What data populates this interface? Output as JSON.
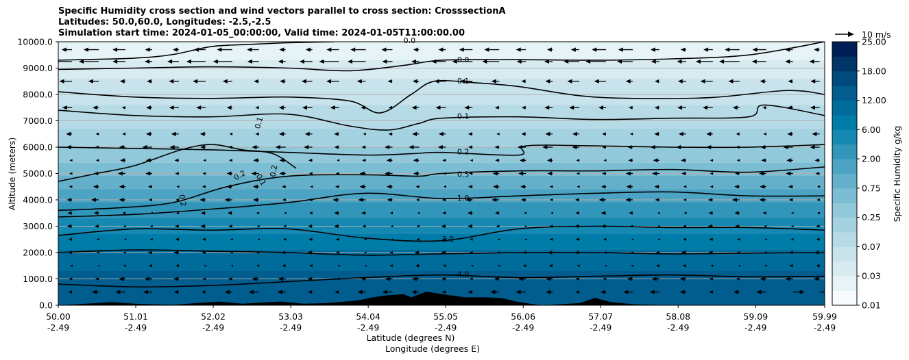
{
  "chart_data": {
    "type": "contour",
    "title_lines": [
      "Specific Humidity cross section and wind vectors parallel to cross section: CrosssectionA",
      "Latitudes: 50.0,60.0, Longitudes: -2.5,-2.5",
      "Simulation start time: 2024-01-05_00:00:00, Valid time: 2024-01-05T11:00:00.00"
    ],
    "xlabel_lines": [
      "Latitude (degrees N)",
      "Longitude (degrees E)"
    ],
    "ylabel": "Altitude (meters)",
    "xlim": [
      50.0,
      59.99
    ],
    "ylim": [
      0,
      10000
    ],
    "x_ticks": [
      {
        "lat": "50.00",
        "lon": "-2.49",
        "value": 50.0
      },
      {
        "lat": "51.01",
        "lon": "-2.49",
        "value": 51.01
      },
      {
        "lat": "52.02",
        "lon": "-2.49",
        "value": 52.02
      },
      {
        "lat": "53.03",
        "lon": "-2.49",
        "value": 53.03
      },
      {
        "lat": "54.04",
        "lon": "-2.49",
        "value": 54.04
      },
      {
        "lat": "55.05",
        "lon": "-2.49",
        "value": 55.05
      },
      {
        "lat": "56.06",
        "lon": "-2.49",
        "value": 56.06
      },
      {
        "lat": "57.07",
        "lon": "-2.49",
        "value": 57.07
      },
      {
        "lat": "58.08",
        "lon": "-2.49",
        "value": 58.08
      },
      {
        "lat": "59.09",
        "lon": "-2.49",
        "value": 59.09
      },
      {
        "lat": "59.99",
        "lon": "-2.49",
        "value": 59.99
      }
    ],
    "y_ticks": [
      {
        "label": "0.0",
        "value": 0
      },
      {
        "label": "1000.0",
        "value": 1000
      },
      {
        "label": "2000.0",
        "value": 2000
      },
      {
        "label": "3000.0",
        "value": 3000
      },
      {
        "label": "4000.0",
        "value": 4000
      },
      {
        "label": "5000.0",
        "value": 5000
      },
      {
        "label": "6000.0",
        "value": 6000
      },
      {
        "label": "7000.0",
        "value": 7000
      },
      {
        "label": "8000.0",
        "value": 8000
      },
      {
        "label": "9000.0",
        "value": 9000
      },
      {
        "label": "10000.0",
        "value": 10000
      }
    ],
    "grid": "horizontal",
    "colorbar": {
      "label": "Specific Humidity g/kg",
      "tick_labels": [
        "0.01",
        "0.03",
        "0.07",
        "0.25",
        "0.75",
        "2.00",
        "6.00",
        "12.00",
        "18.00",
        "25.00"
      ],
      "levels": 18,
      "colors": [
        "#f7fbfd",
        "#e6f3f7",
        "#d7ebf1",
        "#c8e3ec",
        "#b7dbe6",
        "#a5d2e0",
        "#91c8da",
        "#7bbdd3",
        "#64b0cb",
        "#4ca3c3",
        "#3296bb",
        "#1689b3",
        "#007ca9",
        "#006c9c",
        "#005d8e",
        "#004a7d",
        "#003568",
        "#001e56"
      ]
    },
    "wind_key": {
      "label": "10 m/s",
      "speed": 10
    },
    "contours": [
      {
        "label": "0.0",
        "level": 0.0,
        "points": [
          [
            50.0,
            9300
          ],
          [
            51.0,
            9380
          ],
          [
            51.5,
            9520
          ],
          [
            52.0,
            9820
          ],
          [
            52.5,
            9900
          ],
          [
            53.0,
            9960
          ],
          [
            53.6,
            10000
          ]
        ]
      },
      {
        "label": "0.0",
        "level": 0.0,
        "points": [
          [
            50.0,
            8950
          ],
          [
            51.0,
            9000
          ],
          [
            52.0,
            9050
          ],
          [
            53.0,
            9000
          ],
          [
            53.8,
            8900
          ],
          [
            54.5,
            9100
          ],
          [
            55.0,
            9300
          ],
          [
            56.0,
            9320
          ],
          [
            57.0,
            9300
          ],
          [
            58.0,
            9350
          ],
          [
            59.0,
            9500
          ],
          [
            59.99,
            10000
          ]
        ]
      },
      {
        "label": "0.1",
        "level": 0.1,
        "points": [
          [
            50.0,
            8100
          ],
          [
            51.0,
            7900
          ],
          [
            52.0,
            7850
          ],
          [
            53.0,
            7900
          ],
          [
            53.8,
            7750
          ],
          [
            54.2,
            7300
          ],
          [
            54.6,
            8000
          ],
          [
            54.9,
            8500
          ],
          [
            55.4,
            8450
          ],
          [
            56.0,
            8300
          ],
          [
            56.8,
            7950
          ],
          [
            57.5,
            7850
          ],
          [
            58.5,
            7880
          ],
          [
            59.5,
            8150
          ],
          [
            59.99,
            8000
          ]
        ]
      },
      {
        "label": "0.1",
        "level": 0.1,
        "points": [
          [
            50.0,
            7400
          ],
          [
            51.0,
            7200
          ],
          [
            52.0,
            7150
          ],
          [
            53.0,
            7250
          ],
          [
            53.8,
            6800
          ],
          [
            54.3,
            6650
          ],
          [
            54.7,
            6900
          ],
          [
            55.0,
            7100
          ],
          [
            56.0,
            7150
          ],
          [
            57.0,
            7050
          ],
          [
            58.0,
            7100
          ],
          [
            59.0,
            7150
          ],
          [
            59.2,
            7600
          ],
          [
            59.99,
            7200
          ]
        ]
      },
      {
        "label": "0.2",
        "level": 0.2,
        "points": [
          [
            50.0,
            6000
          ],
          [
            51.0,
            5950
          ],
          [
            52.0,
            5900
          ],
          [
            53.0,
            5800
          ],
          [
            54.0,
            5700
          ],
          [
            54.6,
            5750
          ],
          [
            55.0,
            5800
          ],
          [
            56.0,
            5700
          ],
          [
            56.1,
            6050
          ],
          [
            57.0,
            6050
          ],
          [
            58.0,
            6000
          ],
          [
            59.0,
            6000
          ],
          [
            59.99,
            6100
          ]
        ]
      },
      {
        "label": "0.2",
        "level": 0.2,
        "points": [
          [
            50.0,
            4700
          ],
          [
            50.5,
            5000
          ],
          [
            51.0,
            5300
          ],
          [
            51.6,
            5900
          ],
          [
            52.0,
            6100
          ],
          [
            52.4,
            5900
          ],
          [
            52.8,
            5750
          ],
          [
            53.1,
            5200
          ]
        ]
      },
      {
        "label": "0.5",
        "level": 0.5,
        "points": [
          [
            50.0,
            3600
          ],
          [
            50.8,
            3700
          ],
          [
            51.5,
            3900
          ],
          [
            52.2,
            4500
          ],
          [
            53.0,
            4900
          ],
          [
            54.0,
            4950
          ],
          [
            54.7,
            4900
          ],
          [
            55.0,
            5000
          ],
          [
            56.0,
            5100
          ],
          [
            57.0,
            5100
          ],
          [
            58.0,
            5150
          ],
          [
            59.0,
            5050
          ],
          [
            59.99,
            5250
          ]
        ]
      },
      {
        "label": "1.0",
        "level": 1.0,
        "points": [
          [
            50.0,
            3350
          ],
          [
            51.0,
            3450
          ],
          [
            52.0,
            3650
          ],
          [
            53.0,
            3900
          ],
          [
            54.0,
            4250
          ],
          [
            55.0,
            4050
          ],
          [
            56.0,
            4150
          ],
          [
            57.0,
            4250
          ],
          [
            58.0,
            4300
          ],
          [
            59.0,
            4150
          ],
          [
            59.99,
            4150
          ]
        ]
      },
      {
        "label": "2.0",
        "level": 2.0,
        "points": [
          [
            50.0,
            2650
          ],
          [
            51.0,
            2900
          ],
          [
            52.0,
            2850
          ],
          [
            53.0,
            2900
          ],
          [
            54.0,
            2550
          ],
          [
            55.0,
            2450
          ],
          [
            56.0,
            2900
          ],
          [
            57.0,
            3000
          ],
          [
            58.0,
            2950
          ],
          [
            59.0,
            2950
          ],
          [
            59.99,
            2850
          ]
        ]
      },
      {
        "label": "2.0",
        "level": 2.0,
        "points": [
          [
            50.0,
            2000
          ],
          [
            51.0,
            2100
          ],
          [
            52.0,
            2050
          ],
          [
            53.0,
            2000
          ],
          [
            54.0,
            1900
          ],
          [
            55.0,
            1950
          ],
          [
            56.0,
            2000
          ],
          [
            57.0,
            2000
          ],
          [
            58.0,
            1950
          ],
          [
            59.0,
            1980
          ],
          [
            59.99,
            2000
          ]
        ]
      },
      {
        "label": "4.0",
        "level": 4.0,
        "points": [
          [
            50.0,
            800
          ],
          [
            51.0,
            700
          ],
          [
            52.0,
            750
          ],
          [
            53.0,
            900
          ],
          [
            54.0,
            1050
          ],
          [
            55.0,
            1150
          ],
          [
            56.0,
            1050
          ],
          [
            57.0,
            1100
          ],
          [
            58.0,
            1150
          ],
          [
            59.0,
            1080
          ],
          [
            59.99,
            1100
          ]
        ]
      }
    ],
    "contour_labels": [
      {
        "text": "0.0",
        "x": 54.5,
        "y": 10030,
        "angle": 0
      },
      {
        "text": "0.0",
        "x": 55.2,
        "y": 9300,
        "angle": 0
      },
      {
        "text": "0.1",
        "x": 55.2,
        "y": 8500,
        "angle": 0
      },
      {
        "text": "0.1",
        "x": 55.2,
        "y": 7150,
        "angle": 0
      },
      {
        "text": "0.1",
        "x": 52.6,
        "y": 6700,
        "angle": -75
      },
      {
        "text": "0.2",
        "x": 55.2,
        "y": 5800,
        "angle": 0
      },
      {
        "text": "0.2",
        "x": 52.3,
        "y": 4800,
        "angle": -30
      },
      {
        "text": "0.2",
        "x": 52.8,
        "y": 4870,
        "angle": -80
      },
      {
        "text": "0.1",
        "x": 52.6,
        "y": 4950,
        "angle": 60
      },
      {
        "text": "0.2",
        "x": 51.6,
        "y": 4200,
        "angle": 80
      },
      {
        "text": "0.5",
        "x": 55.2,
        "y": 4950,
        "angle": 0
      },
      {
        "text": "1.0",
        "x": 55.2,
        "y": 4050,
        "angle": 0
      },
      {
        "text": "2.0",
        "x": 55.0,
        "y": 2500,
        "angle": 0
      },
      {
        "text": "4.0",
        "x": 55.2,
        "y": 1150,
        "angle": 0
      }
    ],
    "terrain": [
      [
        50.0,
        0
      ],
      [
        50.5,
        80
      ],
      [
        50.7,
        120
      ],
      [
        51.0,
        60
      ],
      [
        51.2,
        40
      ],
      [
        51.5,
        20
      ],
      [
        51.8,
        80
      ],
      [
        52.1,
        140
      ],
      [
        52.4,
        60
      ],
      [
        52.9,
        140
      ],
      [
        53.2,
        60
      ],
      [
        53.5,
        80
      ],
      [
        53.9,
        180
      ],
      [
        54.1,
        300
      ],
      [
        54.3,
        380
      ],
      [
        54.5,
        420
      ],
      [
        54.6,
        300
      ],
      [
        54.8,
        520
      ],
      [
        55.0,
        420
      ],
      [
        55.3,
        300
      ],
      [
        55.6,
        300
      ],
      [
        55.8,
        260
      ],
      [
        56.0,
        120
      ],
      [
        56.3,
        0
      ],
      [
        56.8,
        80
      ],
      [
        57.0,
        280
      ],
      [
        57.2,
        120
      ],
      [
        57.5,
        40
      ],
      [
        58.0,
        0
      ],
      [
        59.99,
        0
      ]
    ],
    "wind_levels": [
      {
        "z": 9700,
        "u": -6
      },
      {
        "z": 9250,
        "u": -8
      },
      {
        "z": 8500,
        "u": -5
      },
      {
        "z": 7500,
        "u": -4
      },
      {
        "z": 6500,
        "u": -3
      },
      {
        "z": 6000,
        "u": -4
      },
      {
        "z": 5500,
        "u": -2.5
      },
      {
        "z": 5000,
        "u": -3
      },
      {
        "z": 4500,
        "u": -2.5
      },
      {
        "z": 4000,
        "u": -3
      },
      {
        "z": 3500,
        "u": -2
      },
      {
        "z": 3000,
        "u": -2
      },
      {
        "z": 2500,
        "u": -1.5
      },
      {
        "z": 2000,
        "u": -2
      },
      {
        "z": 1500,
        "u": -1.5
      },
      {
        "z": 1000,
        "u": -3
      },
      {
        "z": 500,
        "u": -4
      }
    ]
  }
}
